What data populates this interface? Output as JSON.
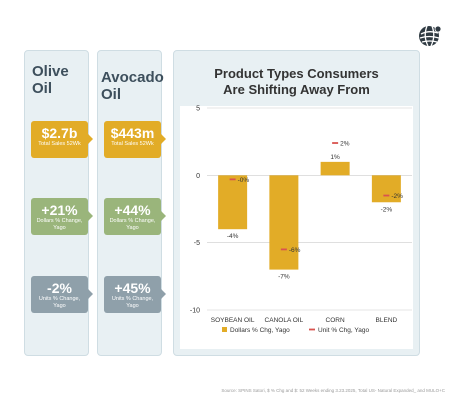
{
  "logo": {
    "icon": "globe-icon"
  },
  "olive": {
    "title_line1": "Olive",
    "title_line2": "Oil",
    "cards": [
      {
        "value": "$2.7b",
        "label": "Total Sales 52Wk",
        "color": "#e2ac27"
      },
      {
        "value": "+21%",
        "label": "Dollars % Change, Yago",
        "color": "#9ab57b"
      },
      {
        "value": "-2%",
        "label": "Units % Change, Yago",
        "color": "#8fa0aa"
      }
    ]
  },
  "avocado": {
    "title_line1": "Avocado",
    "title_line2": "Oil",
    "cards": [
      {
        "value": "$443m",
        "label": "Total Sales 52Wk",
        "color": "#e2ac27"
      },
      {
        "value": "+44%",
        "label": "Dollars % Change, Yago",
        "color": "#9ab57b"
      },
      {
        "value": "+45%",
        "label": "Units % Change, Yago",
        "color": "#8fa0aa"
      }
    ]
  },
  "chart_title_line1": "Product Types Consumers",
  "chart_title_line2": "Are Shifting Away From",
  "chart_data": {
    "type": "bar",
    "title": "Product Types Consumers Are Shifting Away From",
    "categories": [
      "SOYBEAN OIL",
      "CANOLA OIL",
      "CORN",
      "BLEND"
    ],
    "series": [
      {
        "name": "Dollars % Chg, Yago",
        "kind": "bar",
        "color": "#e2ac27",
        "values": [
          -4,
          -7,
          1,
          -2
        ],
        "labels": [
          "-4%",
          "-7%",
          "1%",
          "-2%"
        ]
      },
      {
        "name": "Unit % Chg, Yago",
        "kind": "marker",
        "color": "#d9534f",
        "values": [
          -0.3,
          -5.5,
          2.4,
          -1.5
        ],
        "labels": [
          "-0%",
          "-6%",
          "2%",
          "-2%"
        ]
      }
    ],
    "yticks": [
      5,
      0,
      -5,
      -10
    ],
    "ylim": [
      -10,
      5
    ],
    "grid": true,
    "legend": "bottom"
  },
  "footnote": "Source: SPINS Satori, $ % Chg and $: 52 Weeks ending 3.23.2025, Total US- Natural Expanded_ and MULO+C"
}
